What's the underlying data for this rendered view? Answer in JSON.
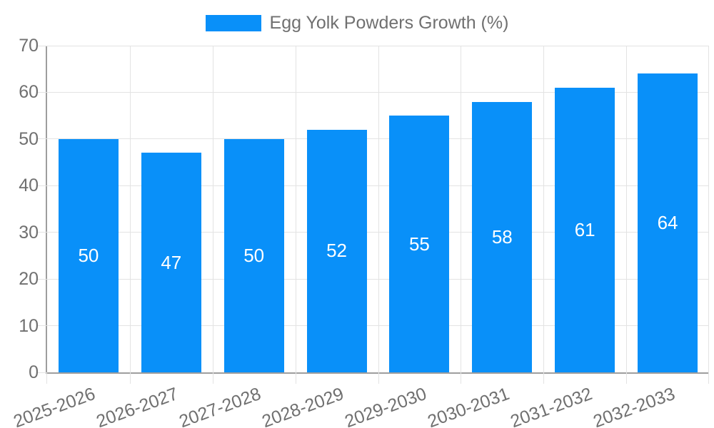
{
  "chart_data": {
    "type": "bar",
    "title": "",
    "legend": "Egg Yolk Powders Growth (%)",
    "legend_position": "top-center",
    "categories": [
      "2025-2026",
      "2026-2027",
      "2027-2028",
      "2028-2029",
      "2029-2030",
      "2030-2031",
      "2031-2032",
      "2032-2033"
    ],
    "values": [
      50,
      47,
      50,
      52,
      55,
      58,
      61,
      64
    ],
    "data_labels": [
      "50",
      "47",
      "50",
      "52",
      "55",
      "58",
      "61",
      "64"
    ],
    "xlabel": "",
    "ylabel": "",
    "ylim": [
      0,
      70
    ],
    "ytick_step": 10,
    "yticks": [
      "0",
      "10",
      "20",
      "30",
      "40",
      "50",
      "60",
      "70"
    ],
    "grid": "on",
    "x_label_rotation_deg": -20,
    "style": {
      "bar_color": "#0990f9",
      "data_label_color": "#ffffff",
      "grid_color": "#e3e3e3",
      "axis_line_color": "#9e9e9e",
      "text_color": "#707070",
      "background": "#ffffff"
    }
  }
}
